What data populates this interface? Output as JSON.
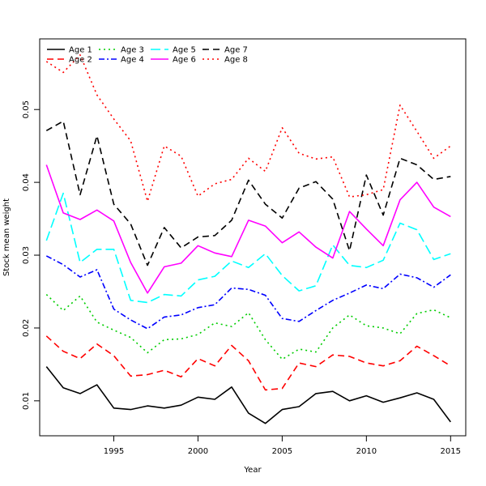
{
  "chart_data": {
    "type": "line",
    "title": "",
    "xlabel": "Year",
    "ylabel": "Stock mean weight",
    "xlim": [
      1990.6,
      2015.9
    ],
    "ylim": [
      0.0052,
      0.0597
    ],
    "x_ticks": [
      1995,
      2000,
      2005,
      2010,
      2015
    ],
    "y_ticks": [
      0.01,
      0.02,
      0.03,
      0.04,
      0.05
    ],
    "grid": false,
    "legend_position": "top-left",
    "x": [
      1991,
      1992,
      1993,
      1994,
      1995,
      1996,
      1997,
      1998,
      1999,
      2000,
      2001,
      2002,
      2003,
      2004,
      2005,
      2006,
      2007,
      2008,
      2009,
      2010,
      2011,
      2012,
      2013,
      2014,
      2015
    ],
    "series": [
      {
        "name": "Age 1",
        "color": "#000000",
        "dash": "solid",
        "values": [
          0.0147,
          0.0118,
          0.011,
          0.0122,
          0.009,
          0.0088,
          0.0093,
          0.009,
          0.0094,
          0.0105,
          0.0102,
          0.0119,
          0.0083,
          0.0069,
          0.0088,
          0.0092,
          0.011,
          0.0113,
          0.01,
          0.0107,
          0.0098,
          0.0104,
          0.0111,
          0.0102,
          0.0071
        ]
      },
      {
        "name": "Age 2",
        "color": "#ff0000",
        "dash": "dashed",
        "values": [
          0.0189,
          0.0168,
          0.0158,
          0.0178,
          0.0162,
          0.0134,
          0.0136,
          0.0142,
          0.0133,
          0.0158,
          0.0148,
          0.0176,
          0.0155,
          0.0115,
          0.0117,
          0.0152,
          0.0147,
          0.0163,
          0.0161,
          0.0152,
          0.0148,
          0.0155,
          0.0175,
          0.0162,
          0.0148
        ]
      },
      {
        "name": "Age 3",
        "color": "#00cd00",
        "dash": "dotted",
        "values": [
          0.0246,
          0.0224,
          0.0244,
          0.0208,
          0.0197,
          0.0187,
          0.0166,
          0.0184,
          0.0185,
          0.0191,
          0.0207,
          0.0202,
          0.0221,
          0.0184,
          0.0157,
          0.0171,
          0.0167,
          0.02,
          0.0218,
          0.0203,
          0.02,
          0.0192,
          0.022,
          0.0225,
          0.0214
        ]
      },
      {
        "name": "Age 4",
        "color": "#0000ff",
        "dash": "dashdot",
        "values": [
          0.0299,
          0.0287,
          0.027,
          0.028,
          0.0226,
          0.0211,
          0.0199,
          0.0215,
          0.0218,
          0.0228,
          0.0232,
          0.0255,
          0.0253,
          0.0245,
          0.0213,
          0.0209,
          0.0224,
          0.0238,
          0.0248,
          0.0259,
          0.0254,
          0.0274,
          0.0269,
          0.0256,
          0.0273
        ]
      },
      {
        "name": "Age 5",
        "color": "#00ffff",
        "dash": "longdash",
        "values": [
          0.032,
          0.0385,
          0.029,
          0.0308,
          0.0308,
          0.0238,
          0.0235,
          0.0246,
          0.0244,
          0.0266,
          0.0271,
          0.0292,
          0.0283,
          0.0302,
          0.0272,
          0.0251,
          0.0258,
          0.0314,
          0.0286,
          0.0283,
          0.0293,
          0.0344,
          0.0335,
          0.0294,
          0.0302
        ]
      },
      {
        "name": "Age 6",
        "color": "#ff00ff",
        "dash": "solid",
        "values": [
          0.0424,
          0.0358,
          0.0349,
          0.0362,
          0.0347,
          0.029,
          0.0248,
          0.0284,
          0.0289,
          0.0313,
          0.0303,
          0.0298,
          0.0348,
          0.034,
          0.0317,
          0.0332,
          0.0311,
          0.0296,
          0.036,
          0.0336,
          0.0313,
          0.0376,
          0.04,
          0.0366,
          0.0353
        ]
      },
      {
        "name": "Age 7",
        "color": "#000000",
        "dash": "dashed",
        "values": [
          0.0471,
          0.0484,
          0.0383,
          0.0464,
          0.037,
          0.0343,
          0.0286,
          0.0338,
          0.031,
          0.0325,
          0.0327,
          0.0348,
          0.0403,
          0.037,
          0.0351,
          0.0392,
          0.0401,
          0.0377,
          0.0306,
          0.041,
          0.0355,
          0.0433,
          0.0424,
          0.0404,
          0.0408
        ]
      },
      {
        "name": "Age 8",
        "color": "#ff0000",
        "dash": "dotted",
        "values": [
          0.0566,
          0.0551,
          0.0575,
          0.052,
          0.0487,
          0.0457,
          0.0374,
          0.045,
          0.0436,
          0.0381,
          0.0398,
          0.0404,
          0.0433,
          0.0415,
          0.0475,
          0.044,
          0.0432,
          0.0435,
          0.038,
          0.0383,
          0.039,
          0.0506,
          0.047,
          0.0433,
          0.045
        ]
      }
    ]
  }
}
